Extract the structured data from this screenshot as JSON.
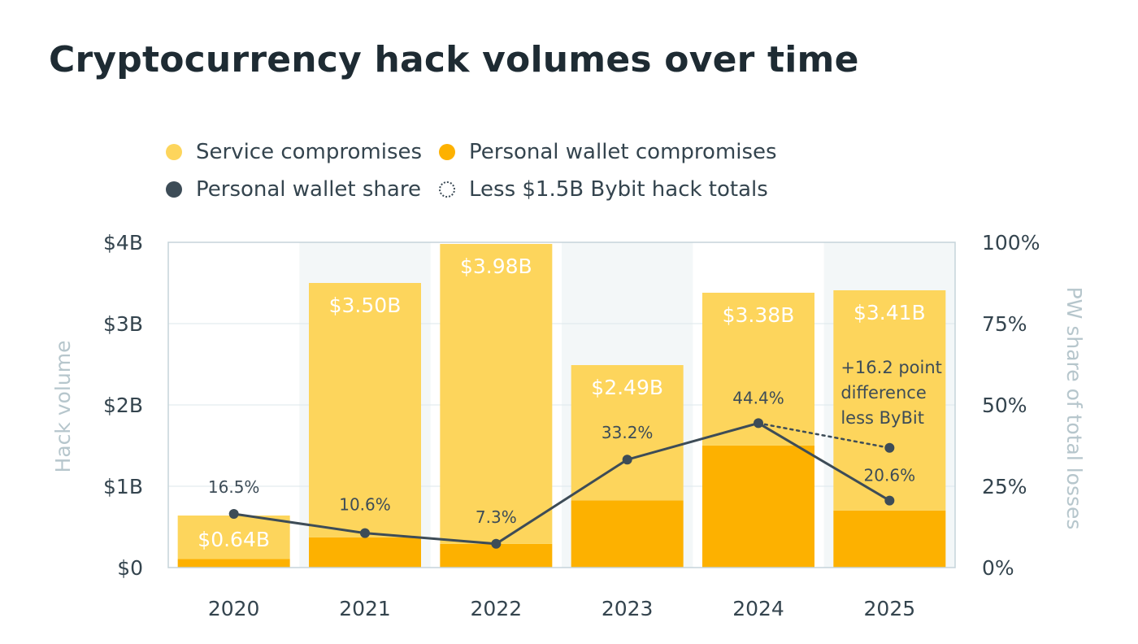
{
  "chart_data": {
    "type": "bar",
    "title": "Cryptocurrency hack volumes over time",
    "categories": [
      "2020",
      "2021",
      "2022",
      "2023",
      "2024",
      "2025"
    ],
    "series": [
      {
        "name": "Personal wallet compromises",
        "values": [
          0.106,
          0.371,
          0.291,
          0.827,
          1.501,
          0.702
        ],
        "color": "#fdb100"
      },
      {
        "name": "Service compromises",
        "values": [
          0.534,
          3.129,
          3.689,
          1.663,
          1.879,
          2.708
        ],
        "color": "#fdd55c"
      }
    ],
    "totals": [
      0.64,
      3.5,
      3.98,
      2.49,
      3.38,
      3.41
    ],
    "total_labels": [
      "$0.64B",
      "$3.50B",
      "$3.98B",
      "$2.49B",
      "$3.38B",
      "$3.41B"
    ],
    "line": {
      "name": "Personal wallet share",
      "values": [
        16.5,
        10.6,
        7.3,
        33.2,
        44.4,
        20.6
      ],
      "labels": [
        "16.5%",
        "10.6%",
        "7.3%",
        "33.2%",
        "44.4%",
        "20.6%"
      ],
      "color": "#3d4c57"
    },
    "dotted": {
      "name": "Less $1.5B Bybit hack totals",
      "from": [
        "2024",
        44.4
      ],
      "to": [
        "2025",
        36.8
      ]
    },
    "annotation": [
      "+16.2 point",
      "difference",
      "less ByBit"
    ],
    "ylabel": "Hack volume",
    "ylim": [
      0,
      4
    ],
    "yticks": [
      0,
      1,
      2,
      3,
      4
    ],
    "ytick_labels": [
      "$0",
      "$1B",
      "$2B",
      "$3B",
      "$4B"
    ],
    "y2label": "PW share of total losses",
    "y2lim": [
      0,
      100
    ],
    "y2ticks": [
      0,
      25,
      50,
      75,
      100
    ],
    "y2tick_labels": [
      "0%",
      "25%",
      "50%",
      "75%",
      "100%"
    ],
    "grid": true,
    "legend_position": "top"
  },
  "legend": {
    "service": "Service compromises",
    "personal": "Personal wallet compromises",
    "share": "Personal wallet share",
    "bybit": "Less $1.5B Bybit hack totals"
  },
  "colors": {
    "service": "#fdd55c",
    "personal": "#fdb100",
    "line": "#3d4c57",
    "axis_text": "#34444e",
    "axis_title": "#b6c6cc",
    "band": "#f3f7f8",
    "frame": "#c5d4da"
  }
}
